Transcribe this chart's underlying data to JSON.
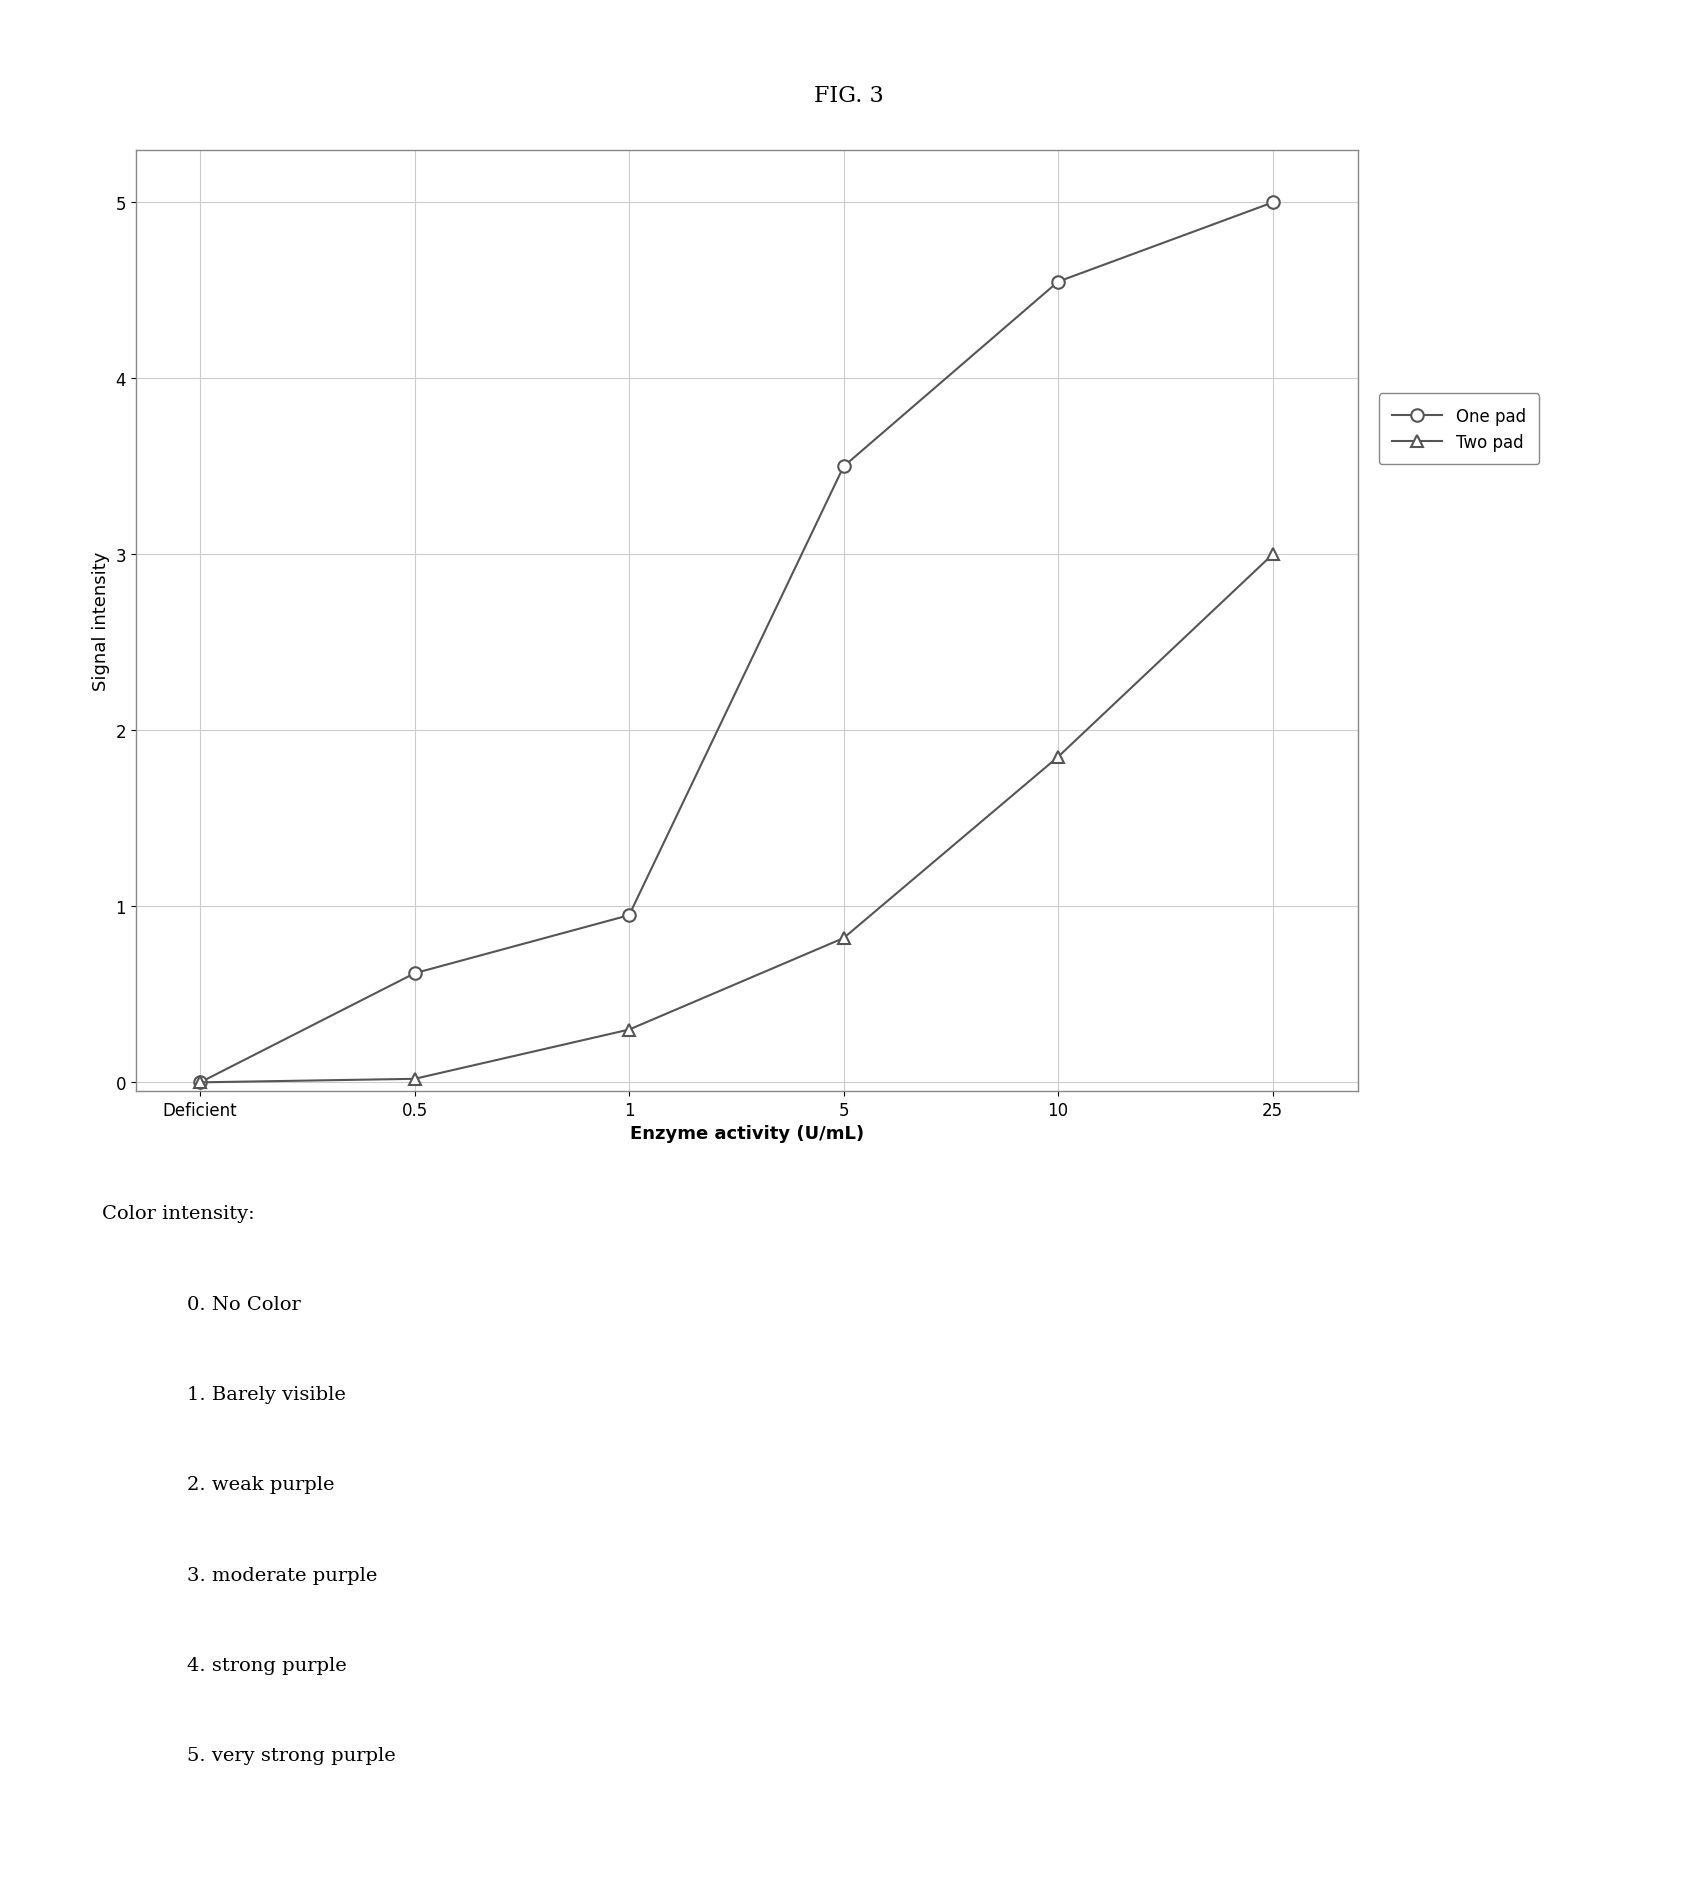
{
  "title": "FIG. 3",
  "xlabel": "Enzyme activity (U/mL)",
  "ylabel": "Signal intensity",
  "x_tick_labels": [
    "Deficient",
    "0.5",
    "1",
    "5",
    "10",
    "25"
  ],
  "x_positions": [
    0,
    1,
    2,
    3,
    4,
    5
  ],
  "one_pad_x": [
    0,
    1,
    2,
    3,
    4,
    5
  ],
  "one_pad_y": [
    0.0,
    0.62,
    0.95,
    3.5,
    4.55,
    5.0
  ],
  "two_pad_x": [
    0,
    1,
    2,
    3,
    4,
    5
  ],
  "two_pad_y": [
    0.0,
    0.02,
    0.3,
    0.82,
    1.85,
    3.0
  ],
  "ylim": [
    -0.05,
    5.3
  ],
  "yticks": [
    0,
    1,
    2,
    3,
    4,
    5
  ],
  "line_color": "#555555",
  "marker_color": "#555555",
  "legend_one_pad": "One pad",
  "legend_two_pad": "Two pad",
  "color_intensity_title": "Color intensity:",
  "color_intensity_items": [
    "0. No Color",
    "1. Barely visible",
    "2. weak purple",
    "3. moderate purple",
    "4. strong purple",
    "5. very strong purple"
  ],
  "background_color": "#ffffff",
  "grid_color": "#cccccc",
  "title_fontsize": 16,
  "axis_label_fontsize": 13,
  "tick_fontsize": 12,
  "legend_fontsize": 12,
  "annotation_fontsize": 14
}
